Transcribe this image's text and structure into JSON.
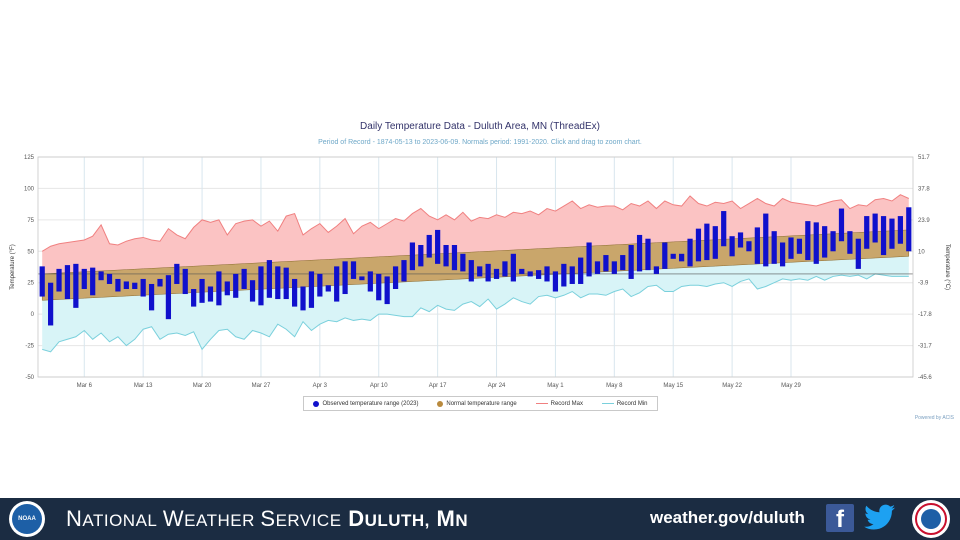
{
  "chart_data": {
    "type": "bar",
    "title": "Daily Temperature Data - Duluth Area, MN (ThreadEx)",
    "subtitle": "Period of Record - 1874-05-13 to 2023-06-09. Normals period: 1991-2020. Click and drag to zoom chart.",
    "ylabel_left": "Temperature (°F)",
    "ylabel_right": "Temperature (°C)",
    "ylim": [
      -50,
      125
    ],
    "y_ticks_left": [
      "125",
      "100",
      "75",
      "50",
      "25",
      "0",
      "-25",
      "-50"
    ],
    "y_ticks_right": [
      "51.7",
      "37.8",
      "23.9",
      "10",
      "-3.9",
      "-17.8",
      "-31.7",
      "-45.6"
    ],
    "x_start": "Mar 1",
    "x_ticks": [
      "Mar 6",
      "Mar 13",
      "Mar 20",
      "Mar 27",
      "Apr 3",
      "Apr 10",
      "Apr 17",
      "Apr 24",
      "May 1",
      "May 8",
      "May 15",
      "May 22",
      "May 29"
    ],
    "legend_position": "bottom",
    "grid": true,
    "series": [
      {
        "name": "Observed temperature range (2023)",
        "type": "range-bar",
        "color": "#1010cc",
        "values": [
          [
            14,
            38
          ],
          [
            -9,
            25
          ],
          [
            18,
            36
          ],
          [
            12,
            39
          ],
          [
            5,
            40
          ],
          [
            20,
            36
          ],
          [
            15,
            37
          ],
          [
            27,
            34
          ],
          [
            24,
            32
          ],
          [
            18,
            28
          ],
          [
            20,
            26
          ],
          [
            20,
            25
          ],
          [
            14,
            28
          ],
          [
            3,
            24
          ],
          [
            22,
            28
          ],
          [
            -4,
            31
          ],
          [
            24,
            40
          ],
          [
            16,
            36
          ],
          [
            6,
            20
          ],
          [
            9,
            28
          ],
          [
            10,
            22
          ],
          [
            7,
            34
          ],
          [
            15,
            26
          ],
          [
            13,
            32
          ],
          [
            20,
            36
          ],
          [
            10,
            27
          ],
          [
            7,
            38
          ],
          [
            13,
            43
          ],
          [
            12,
            38
          ],
          [
            12,
            37
          ],
          [
            6,
            28
          ],
          [
            3,
            22
          ],
          [
            5,
            34
          ],
          [
            14,
            32
          ],
          [
            18,
            23
          ],
          [
            10,
            38
          ],
          [
            16,
            42
          ],
          [
            28,
            42
          ],
          [
            27,
            30
          ],
          [
            18,
            34
          ],
          [
            11,
            32
          ],
          [
            8,
            30
          ],
          [
            20,
            38
          ],
          [
            26,
            43
          ],
          [
            35,
            57
          ],
          [
            38,
            55
          ],
          [
            45,
            63
          ],
          [
            40,
            67
          ],
          [
            38,
            55
          ],
          [
            35,
            55
          ],
          [
            34,
            48
          ],
          [
            26,
            43
          ],
          [
            30,
            38
          ],
          [
            26,
            40
          ],
          [
            28,
            36
          ],
          [
            30,
            42
          ],
          [
            26,
            48
          ],
          [
            32,
            36
          ],
          [
            30,
            34
          ],
          [
            28,
            35
          ],
          [
            26,
            38
          ],
          [
            18,
            34
          ],
          [
            22,
            40
          ],
          [
            24,
            38
          ],
          [
            24,
            45
          ],
          [
            30,
            57
          ],
          [
            32,
            42
          ],
          [
            34,
            47
          ],
          [
            32,
            42
          ],
          [
            35,
            47
          ],
          [
            28,
            55
          ],
          [
            34,
            63
          ],
          [
            35,
            60
          ],
          [
            32,
            38
          ],
          [
            36,
            57
          ],
          [
            44,
            48
          ],
          [
            42,
            48
          ],
          [
            38,
            60
          ],
          [
            42,
            68
          ],
          [
            43,
            72
          ],
          [
            44,
            70
          ],
          [
            54,
            82
          ],
          [
            46,
            62
          ],
          [
            53,
            65
          ],
          [
            50,
            58
          ],
          [
            40,
            69
          ],
          [
            38,
            80
          ],
          [
            40,
            66
          ],
          [
            38,
            57
          ],
          [
            44,
            61
          ],
          [
            48,
            60
          ],
          [
            43,
            74
          ],
          [
            40,
            73
          ],
          [
            45,
            70
          ],
          [
            50,
            66
          ],
          [
            58,
            84
          ],
          [
            48,
            66
          ],
          [
            36,
            60
          ],
          [
            52,
            78
          ],
          [
            57,
            80
          ],
          [
            47,
            78
          ],
          [
            52,
            76
          ],
          [
            56,
            78
          ],
          [
            50,
            85
          ]
        ]
      },
      {
        "name": "Normal temperature range",
        "type": "band",
        "color": "#c9a66b",
        "low_start": 11,
        "low_end": 46,
        "high_start": 32,
        "high_end": 67
      },
      {
        "name": "Record Max",
        "type": "area",
        "color": "#f07878",
        "values": [
          50,
          54,
          56,
          57,
          58,
          59,
          62,
          71,
          56,
          55,
          58,
          60,
          61,
          59,
          58,
          68,
          63,
          60,
          69,
          75,
          73,
          75,
          63,
          72,
          74,
          75,
          70,
          74,
          66,
          78,
          80,
          63,
          68,
          72,
          65,
          70,
          76,
          64,
          70,
          73,
          68,
          72,
          76,
          74,
          80,
          84,
          78,
          75,
          79,
          75,
          81,
          74,
          77,
          76,
          79,
          77,
          81,
          80,
          82,
          79,
          84,
          82,
          86,
          90,
          84,
          87,
          85,
          86,
          86,
          83,
          88,
          86,
          90,
          84,
          90,
          87,
          86,
          94,
          88,
          86,
          89,
          88,
          90,
          84,
          88,
          92,
          88,
          86,
          92,
          89,
          88,
          87,
          86,
          88,
          90,
          91,
          84,
          87,
          86,
          91,
          92,
          90,
          95,
          92
        ]
      },
      {
        "name": "Record Min",
        "type": "area",
        "color": "#7ad0dc",
        "values": [
          -28,
          -30,
          -22,
          -20,
          -18,
          -13,
          -20,
          -15,
          -22,
          -18,
          -25,
          -20,
          -12,
          -10,
          -20,
          -16,
          -15,
          -17,
          -14,
          -28,
          -20,
          -13,
          -12,
          -18,
          -20,
          -13,
          -15,
          -18,
          -8,
          -12,
          -18,
          -6,
          -13,
          -8,
          -5,
          -6,
          -3,
          -5,
          -4,
          -5,
          0,
          0,
          -1,
          -2,
          -2,
          5,
          2,
          7,
          4,
          3,
          8,
          10,
          6,
          12,
          4,
          8,
          13,
          10,
          8,
          14,
          15,
          13,
          15,
          18,
          13,
          16,
          16,
          15,
          18,
          20,
          14,
          17,
          22,
          23,
          18,
          18,
          22,
          23,
          23,
          22,
          24,
          25,
          22,
          26,
          28,
          20,
          22,
          25,
          28,
          27,
          28,
          27,
          30,
          27,
          30,
          31,
          30,
          31,
          28,
          32,
          31,
          30,
          30,
          30
        ]
      }
    ]
  },
  "legend": {
    "observed": "Observed temperature range (2023)",
    "normal": "Normal temperature range",
    "record_max": "Record Max",
    "record_min": "Record Min",
    "observed_color": "#1010cc",
    "normal_color": "#b98a3e",
    "record_max_color": "#f08080",
    "record_min_color": "#7ad0dc"
  },
  "credit": "Powered by ACIS",
  "footer": {
    "agency_prefix": "National Weather Service",
    "office": "Duluth, MN",
    "url": "weather.gov/duluth",
    "noaa_text": "NOAA",
    "facebook_glyph": "f",
    "background": "#1b2c42"
  }
}
